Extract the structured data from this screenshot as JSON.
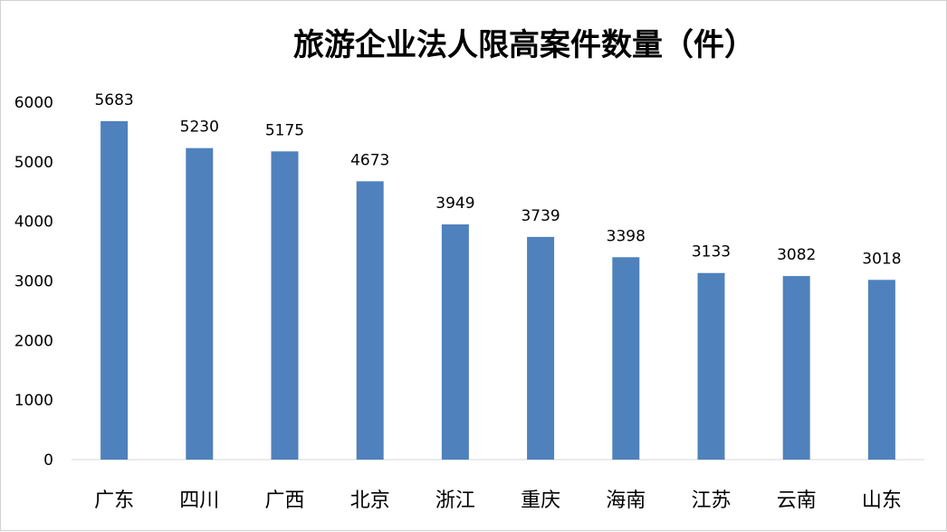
{
  "chart_data": {
    "type": "bar",
    "title": "旅游企业法人限高案件数量（件）",
    "categories": [
      "广东",
      "四川",
      "广西",
      "北京",
      "浙江",
      "重庆",
      "海南",
      "江苏",
      "云南",
      "山东"
    ],
    "values": [
      5683,
      5230,
      5175,
      4673,
      3949,
      3739,
      3398,
      3133,
      3082,
      3018
    ],
    "yticks": [
      "0",
      "1000",
      "2000",
      "3000",
      "4000",
      "5000",
      "6000"
    ],
    "ylim": [
      0,
      6000
    ],
    "grid": false,
    "legend": "none",
    "bar_color": "#4f81bd",
    "data_labels": true
  }
}
